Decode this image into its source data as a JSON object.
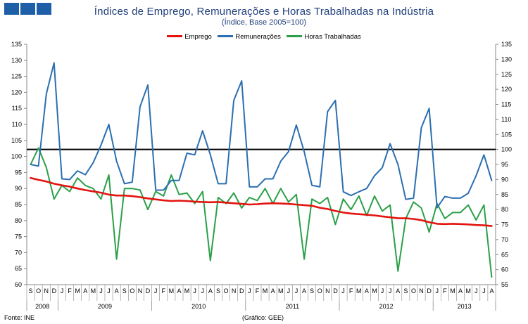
{
  "header": {
    "logo_color": "#1f5fa8",
    "title": "Índices de Emprego, Remunerações e Horas Trabalhadas  na Indústria",
    "subtitle": "(Índice, Base 2005=100)"
  },
  "footer": {
    "source": "Fonte: INE",
    "credit": "(Gráfico: GEE)"
  },
  "chart_data": {
    "type": "line",
    "x_month_labels": [
      "S",
      "O",
      "N",
      "D",
      "J",
      "F",
      "M",
      "A",
      "M",
      "J",
      "J",
      "A",
      "S",
      "O",
      "N",
      "D",
      "J",
      "F",
      "M",
      "A",
      "M",
      "J",
      "J",
      "A",
      "S",
      "O",
      "N",
      "D",
      "J",
      "F",
      "M",
      "A",
      "M",
      "J",
      "J",
      "A",
      "S",
      "O",
      "N",
      "D",
      "J",
      "F",
      "M",
      "A",
      "M",
      "J",
      "J",
      "A",
      "S",
      "O",
      "N",
      "D",
      "J",
      "F",
      "M",
      "A",
      "M",
      "J",
      "J",
      "A"
    ],
    "year_groups": [
      {
        "label": "2008",
        "start": 0,
        "count": 4
      },
      {
        "label": "2009",
        "start": 4,
        "count": 12
      },
      {
        "label": "2010",
        "start": 16,
        "count": 12
      },
      {
        "label": "2011",
        "start": 28,
        "count": 12
      },
      {
        "label": "2012",
        "start": 40,
        "count": 12
      },
      {
        "label": "2013",
        "start": 52,
        "count": 8
      }
    ],
    "left_axis": {
      "min": 60,
      "max": 135,
      "step": 5,
      "ticks": [
        "60",
        "65",
        "70",
        "75",
        "80",
        "85",
        "90",
        "95",
        "100",
        "105",
        "110",
        "115",
        "120",
        "125",
        "130",
        "135"
      ]
    },
    "right_axis": {
      "min": 55,
      "max": 135,
      "step": 5,
      "ticks": [
        "55",
        "60",
        "65",
        "70",
        "75",
        "80",
        "85",
        "90",
        "95",
        "100",
        "105",
        "110",
        "115",
        "120",
        "125",
        "130",
        "135"
      ]
    },
    "reference_line": {
      "axis": "right",
      "value": 100,
      "color": "#000000"
    },
    "series": [
      {
        "name": "Emprego",
        "axis": "left",
        "color": "#e3140f",
        "values": [
          93.3,
          92.7,
          92.2,
          91.5,
          91.0,
          90.6,
          90.0,
          89.5,
          89.1,
          88.7,
          88.1,
          87.8,
          87.8,
          87.6,
          87.3,
          86.9,
          86.6,
          86.3,
          86.1,
          86.2,
          86.1,
          85.9,
          85.8,
          85.7,
          85.8,
          85.6,
          85.4,
          85.2,
          85.0,
          85.1,
          85.3,
          85.4,
          85.3,
          85.2,
          85.0,
          84.8,
          84.6,
          84.0,
          83.6,
          83.0,
          82.5,
          82.2,
          82.0,
          81.8,
          81.6,
          81.3,
          81.0,
          80.7,
          80.7,
          80.5,
          80.1,
          79.5,
          79.0,
          78.9,
          79.0,
          78.9,
          78.8,
          78.6,
          78.5,
          78.3
        ]
      },
      {
        "name": "Remunerações",
        "axis": "left",
        "color": "#2b6fb0",
        "values": [
          97.5,
          97.0,
          119.5,
          129.2,
          93.0,
          92.8,
          95.5,
          94.3,
          98.0,
          103.5,
          110.0,
          98.5,
          91.5,
          92.0,
          115.5,
          122.3,
          89.5,
          89.5,
          92.5,
          92.5,
          101.0,
          100.5,
          108.0,
          100.5,
          91.5,
          91.5,
          117.5,
          123.6,
          90.5,
          90.5,
          93.0,
          93.0,
          98.5,
          101.5,
          109.8,
          101.5,
          91.0,
          90.5,
          114.0,
          117.5,
          89.0,
          87.8,
          89.0,
          90.0,
          94.0,
          96.5,
          104.0,
          97.5,
          86.6,
          87.0,
          109.0,
          115.0,
          84.0,
          87.5,
          87.0,
          87.0,
          88.5,
          94.0,
          100.5,
          92.5
        ]
      },
      {
        "name": "Horas Trabalhadas",
        "axis": "right",
        "color": "#2aa048",
        "values": [
          95,
          100.5,
          94,
          83.5,
          88,
          86,
          90.5,
          88,
          87,
          83.5,
          91.5,
          63.5,
          87,
          87,
          86.5,
          80,
          86,
          84.5,
          91.5,
          85,
          85.5,
          82,
          86,
          63,
          84,
          82,
          85.5,
          80.5,
          84,
          83,
          87,
          82,
          87,
          82.5,
          85,
          63.5,
          83.5,
          82,
          84,
          75,
          83.5,
          80,
          84.5,
          78,
          84.5,
          79.5,
          81.5,
          59.5,
          77,
          82.5,
          80.5,
          72.5,
          82,
          77,
          79,
          79,
          81.5,
          76.5,
          81.5,
          57.5
        ]
      }
    ]
  }
}
